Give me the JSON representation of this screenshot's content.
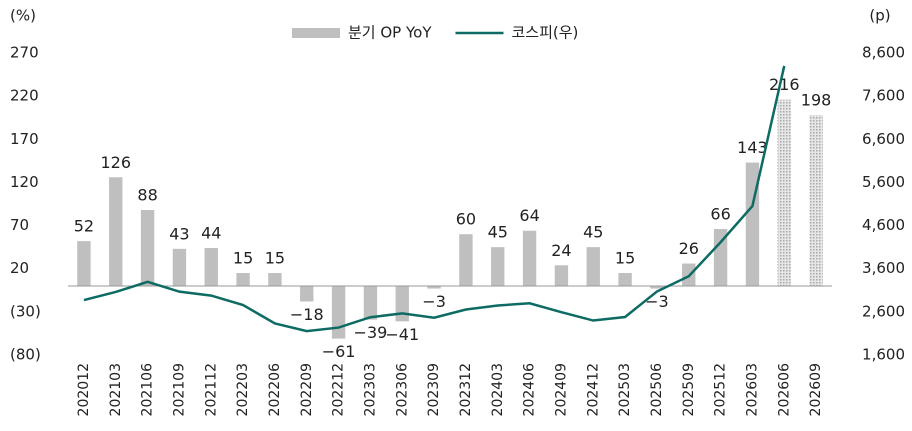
{
  "chart_data": {
    "type": "bar_line",
    "y_label": "(%)",
    "y2_label": "(p)",
    "categories": [
      "202012",
      "202103",
      "202106",
      "202109",
      "202112",
      "202203",
      "202206",
      "202209",
      "202212",
      "202303",
      "202306",
      "202309",
      "202312",
      "202403",
      "202406",
      "202409",
      "202412",
      "202503",
      "202506",
      "202509",
      "202512",
      "202603",
      "202606",
      "202609"
    ],
    "estimate_start": "202606",
    "series": [
      {
        "name": "분기 OP YoY",
        "type": "bar",
        "color": "#bfbfbf",
        "values": [
          52,
          126,
          88,
          43,
          44,
          15,
          15,
          -18,
          -61,
          -39,
          -41,
          -3,
          60,
          45,
          64,
          24,
          45,
          15,
          -3,
          26,
          66,
          143,
          216,
          198
        ],
        "value_labels": [
          "52",
          "126",
          "88",
          "43",
          "44",
          "15",
          "15",
          "−18",
          "−61",
          "−39",
          "−41",
          "−3",
          "60",
          "45",
          "64",
          "24",
          "45",
          "15",
          "−3",
          "26",
          "66",
          "143",
          "216",
          "198"
        ]
      },
      {
        "name": "코스피(우)",
        "type": "line",
        "color": "#0d6b63",
        "axis": "y2",
        "values": [
          2873,
          3061,
          3296,
          3068,
          2977,
          2757,
          2332,
          2155,
          2236,
          2476,
          2564,
          2465,
          2655,
          2747,
          2798,
          2593,
          2399,
          2481,
          3071,
          3425,
          4214,
          5052,
          8300,
          null
        ]
      }
    ],
    "ylim": [
      -80,
      270
    ],
    "yticks": [
      {
        "value": -80,
        "label": "(80)"
      },
      {
        "value": -30,
        "label": "(30)"
      },
      20,
      70,
      120,
      170,
      220,
      270
    ],
    "y2lim": [
      1600,
      8600
    ],
    "y2ticks": [
      {
        "value": 1600,
        "label": "1,600"
      },
      {
        "value": 2600,
        "label": "2,600"
      },
      {
        "value": 3600,
        "label": "3,600"
      },
      {
        "value": 4600,
        "label": "4,600"
      },
      {
        "value": 5600,
        "label": "5,600"
      },
      {
        "value": 6600,
        "label": "6,600"
      },
      {
        "value": 7600,
        "label": "7,600"
      },
      {
        "value": 8600,
        "label": "8,600"
      }
    ],
    "legend": "top"
  }
}
